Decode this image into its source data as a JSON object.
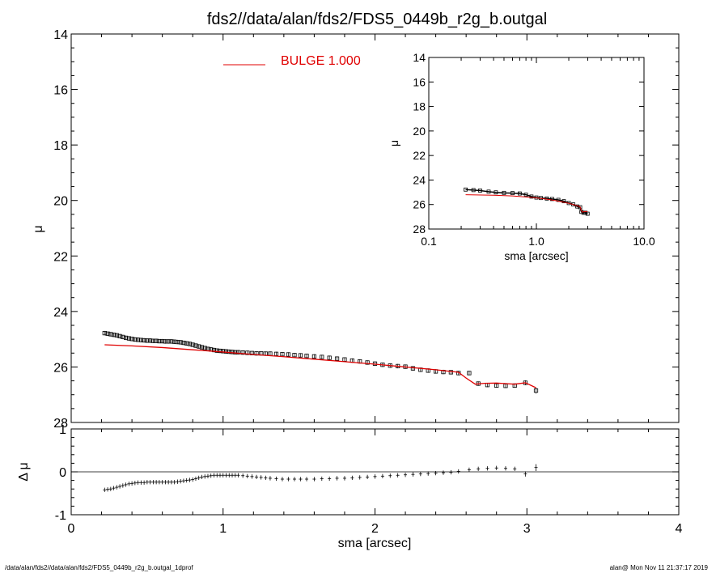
{
  "title": "fds2//data/alan/fds2/FDS5_0449b_r2g_b.outgal",
  "footer": {
    "left": "/data/alan/fds2//data/alan/fds2/FDS5_0449b_r2g_b.outgal_1dprof",
    "right": "alan@  Mon Nov 11 21:37:17 2019"
  },
  "colors": {
    "model": "#e00000",
    "data": "#000000",
    "axes": "#000000"
  },
  "chart_data": [
    {
      "id": "main",
      "type": "scatter",
      "xlabel": "",
      "ylabel": "μ",
      "xlim": [
        0,
        4
      ],
      "ylim": [
        28,
        14
      ],
      "y_inverted": true,
      "xticks": [
        0,
        1,
        2,
        3,
        4
      ],
      "yticks": [
        14,
        16,
        18,
        20,
        22,
        24,
        26,
        28
      ],
      "ytick_labels": [
        "14",
        "16",
        "18",
        "20",
        "22",
        "24",
        "26",
        "28"
      ],
      "legend": {
        "label": "BULGE  1.000",
        "placement": "top-center",
        "color": "#e00000"
      },
      "series": [
        {
          "name": "data",
          "marker": "square",
          "x": [
            0.22,
            0.24,
            0.26,
            0.28,
            0.3,
            0.32,
            0.34,
            0.36,
            0.38,
            0.4,
            0.42,
            0.44,
            0.46,
            0.48,
            0.5,
            0.52,
            0.54,
            0.56,
            0.58,
            0.6,
            0.62,
            0.64,
            0.66,
            0.68,
            0.7,
            0.72,
            0.74,
            0.76,
            0.78,
            0.8,
            0.82,
            0.84,
            0.86,
            0.88,
            0.9,
            0.92,
            0.94,
            0.96,
            0.98,
            1.0,
            1.02,
            1.04,
            1.06,
            1.08,
            1.1,
            1.13,
            1.16,
            1.19,
            1.22,
            1.25,
            1.28,
            1.31,
            1.35,
            1.39,
            1.43,
            1.47,
            1.51,
            1.55,
            1.6,
            1.65,
            1.7,
            1.75,
            1.8,
            1.85,
            1.9,
            1.95,
            2.0,
            2.05,
            2.1,
            2.15,
            2.2,
            2.25,
            2.3,
            2.35,
            2.4,
            2.45,
            2.5,
            2.55,
            2.62,
            2.68,
            2.74,
            2.8,
            2.86,
            2.92,
            2.99,
            3.06
          ],
          "y": [
            24.78,
            24.8,
            24.82,
            24.84,
            24.86,
            24.89,
            24.92,
            24.95,
            24.97,
            24.99,
            25.01,
            25.02,
            25.03,
            25.04,
            25.05,
            25.05,
            25.06,
            25.06,
            25.07,
            25.07,
            25.08,
            25.08,
            25.08,
            25.09,
            25.1,
            25.11,
            25.13,
            25.15,
            25.17,
            25.2,
            25.23,
            25.26,
            25.29,
            25.32,
            25.35,
            25.37,
            25.39,
            25.41,
            25.42,
            25.43,
            25.44,
            25.45,
            25.46,
            25.47,
            25.47,
            25.48,
            25.49,
            25.5,
            25.51,
            25.51,
            25.52,
            25.52,
            25.53,
            25.54,
            25.55,
            25.57,
            25.58,
            25.6,
            25.62,
            25.64,
            25.67,
            25.7,
            25.73,
            25.77,
            25.8,
            25.84,
            25.88,
            25.92,
            25.95,
            25.97,
            25.99,
            26.05,
            26.1,
            26.13,
            26.16,
            26.18,
            26.19,
            26.22,
            26.22,
            26.6,
            26.65,
            26.67,
            26.68,
            26.67,
            26.57,
            26.85
          ],
          "errors": [
            0.05,
            0.05,
            0.05,
            0.05,
            0.05,
            0.05,
            0.05,
            0.05,
            0.05,
            0.05,
            0.05,
            0.05,
            0.05,
            0.05,
            0.05,
            0.05,
            0.05,
            0.05,
            0.05,
            0.05,
            0.05,
            0.05,
            0.05,
            0.05,
            0.05,
            0.05,
            0.05,
            0.05,
            0.05,
            0.05,
            0.05,
            0.05,
            0.05,
            0.05,
            0.05,
            0.05,
            0.05,
            0.05,
            0.05,
            0.05,
            0.05,
            0.05,
            0.05,
            0.05,
            0.05,
            0.05,
            0.05,
            0.05,
            0.05,
            0.05,
            0.05,
            0.05,
            0.05,
            0.05,
            0.05,
            0.05,
            0.05,
            0.05,
            0.05,
            0.05,
            0.05,
            0.05,
            0.05,
            0.05,
            0.05,
            0.05,
            0.05,
            0.05,
            0.05,
            0.05,
            0.05,
            0.05,
            0.05,
            0.05,
            0.05,
            0.05,
            0.05,
            0.05,
            0.05,
            0.05,
            0.05,
            0.05,
            0.05,
            0.05,
            0.06,
            0.08
          ]
        },
        {
          "name": "BULGE  1.000",
          "type": "line",
          "color": "#e00000",
          "x": [
            0.22,
            0.4,
            0.6,
            0.8,
            1.0,
            1.2,
            1.4,
            1.6,
            1.8,
            2.0,
            2.2,
            2.4,
            2.55,
            2.6,
            2.66,
            2.72,
            2.8,
            2.86,
            2.92,
            2.99,
            3.06
          ],
          "y": [
            25.2,
            25.24,
            25.3,
            25.38,
            25.46,
            25.55,
            25.63,
            25.72,
            25.81,
            25.9,
            26.0,
            26.1,
            26.19,
            26.4,
            26.62,
            26.59,
            26.58,
            26.6,
            26.62,
            26.57,
            26.75
          ]
        }
      ]
    },
    {
      "id": "residuals",
      "type": "scatter",
      "xlabel": "sma [arcsec]",
      "ylabel": "Δ μ",
      "xlim": [
        0,
        4
      ],
      "ylim": [
        -1,
        1
      ],
      "xticks": [
        0,
        1,
        2,
        3,
        4
      ],
      "xtick_labels": [
        "0",
        "1",
        "2",
        "3",
        "4"
      ],
      "yticks": [
        -1,
        0,
        1
      ],
      "ytick_labels": [
        "-1",
        "0",
        "1"
      ],
      "reference_line": 0,
      "series": [
        {
          "name": "residuals",
          "marker": "plus",
          "x": [
            0.22,
            0.24,
            0.26,
            0.28,
            0.3,
            0.32,
            0.34,
            0.36,
            0.38,
            0.4,
            0.42,
            0.44,
            0.46,
            0.48,
            0.5,
            0.52,
            0.54,
            0.56,
            0.58,
            0.6,
            0.62,
            0.64,
            0.66,
            0.68,
            0.7,
            0.72,
            0.74,
            0.76,
            0.78,
            0.8,
            0.82,
            0.84,
            0.86,
            0.88,
            0.9,
            0.92,
            0.94,
            0.96,
            0.98,
            1.0,
            1.02,
            1.04,
            1.06,
            1.08,
            1.1,
            1.13,
            1.16,
            1.19,
            1.22,
            1.25,
            1.28,
            1.31,
            1.35,
            1.39,
            1.43,
            1.47,
            1.51,
            1.55,
            1.6,
            1.65,
            1.7,
            1.75,
            1.8,
            1.85,
            1.9,
            1.95,
            2.0,
            2.05,
            2.1,
            2.15,
            2.2,
            2.25,
            2.3,
            2.35,
            2.4,
            2.45,
            2.5,
            2.55,
            2.62,
            2.68,
            2.74,
            2.8,
            2.86,
            2.92,
            2.99,
            3.06
          ],
          "y": [
            -0.42,
            -0.41,
            -0.4,
            -0.38,
            -0.36,
            -0.34,
            -0.32,
            -0.3,
            -0.28,
            -0.27,
            -0.26,
            -0.25,
            -0.25,
            -0.25,
            -0.24,
            -0.24,
            -0.24,
            -0.24,
            -0.24,
            -0.24,
            -0.24,
            -0.24,
            -0.24,
            -0.24,
            -0.23,
            -0.22,
            -0.21,
            -0.2,
            -0.19,
            -0.18,
            -0.16,
            -0.14,
            -0.12,
            -0.11,
            -0.1,
            -0.09,
            -0.08,
            -0.08,
            -0.08,
            -0.08,
            -0.08,
            -0.08,
            -0.08,
            -0.08,
            -0.08,
            -0.09,
            -0.1,
            -0.11,
            -0.12,
            -0.13,
            -0.14,
            -0.15,
            -0.16,
            -0.17,
            -0.17,
            -0.17,
            -0.17,
            -0.17,
            -0.17,
            -0.16,
            -0.16,
            -0.15,
            -0.15,
            -0.14,
            -0.13,
            -0.12,
            -0.11,
            -0.1,
            -0.09,
            -0.08,
            -0.07,
            -0.06,
            -0.05,
            -0.04,
            -0.03,
            -0.02,
            -0.01,
            0.01,
            0.05,
            0.07,
            0.08,
            0.09,
            0.08,
            0.07,
            -0.05,
            0.1
          ]
        }
      ]
    },
    {
      "id": "inset",
      "type": "scatter",
      "xlabel": "sma [arcsec]",
      "ylabel": "μ",
      "xscale": "log",
      "xlim": [
        0.1,
        10.0
      ],
      "ylim": [
        28,
        14
      ],
      "y_inverted": true,
      "xticks": [
        0.1,
        1.0,
        10.0
      ],
      "xtick_labels": [
        "0.1",
        "1.0",
        "10.0"
      ],
      "yticks": [
        14,
        16,
        18,
        20,
        22,
        24,
        26,
        28
      ],
      "ytick_labels": [
        "14",
        "16",
        "18",
        "20",
        "22",
        "24",
        "26",
        "28"
      ],
      "series": [
        {
          "name": "data",
          "marker": "square",
          "x": [
            0.22,
            0.26,
            0.3,
            0.36,
            0.42,
            0.5,
            0.6,
            0.7,
            0.8,
            0.9,
            1.0,
            1.1,
            1.25,
            1.4,
            1.6,
            1.8,
            2.0,
            2.2,
            2.4,
            2.55,
            2.62,
            2.74,
            2.86,
            2.99
          ],
          "y": [
            24.78,
            24.82,
            24.86,
            24.95,
            25.01,
            25.05,
            25.07,
            25.1,
            25.2,
            25.35,
            25.43,
            25.47,
            25.51,
            25.55,
            25.62,
            25.73,
            25.88,
            25.99,
            26.16,
            26.22,
            26.6,
            26.67,
            26.67,
            26.75
          ]
        },
        {
          "name": "model",
          "type": "line",
          "color": "#e00000",
          "x": [
            0.22,
            0.4,
            0.6,
            0.8,
            1.0,
            1.2,
            1.4,
            1.6,
            1.8,
            2.0,
            2.2,
            2.4,
            2.55,
            2.6,
            2.66,
            2.8,
            2.99
          ],
          "y": [
            25.2,
            25.24,
            25.3,
            25.38,
            25.46,
            25.55,
            25.63,
            25.72,
            25.81,
            25.9,
            26.0,
            26.1,
            26.19,
            26.4,
            26.62,
            26.58,
            26.57
          ]
        }
      ]
    }
  ]
}
